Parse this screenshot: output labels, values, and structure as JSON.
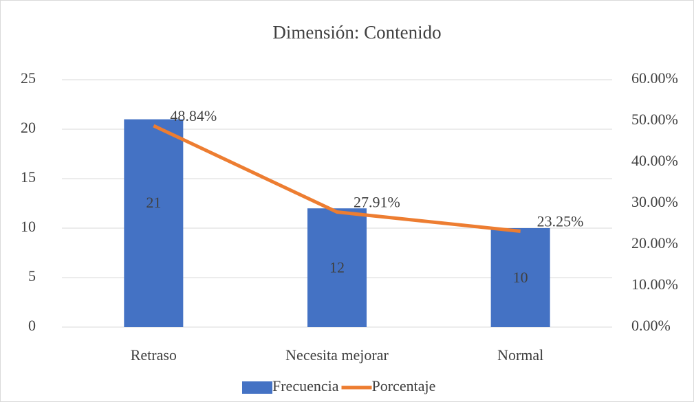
{
  "chart_data": {
    "type": "bar",
    "title": "Dimensión: Contenido",
    "categories": [
      "Retraso",
      "Necesita mejorar",
      "Normal"
    ],
    "series": [
      {
        "name": "Frecuencia",
        "type": "bar",
        "color": "#4472c4",
        "values": [
          21,
          12,
          10
        ]
      },
      {
        "name": "Porcentaje",
        "type": "line",
        "axis": "y2",
        "color": "#ed7d31",
        "values": [
          48.84,
          27.91,
          23.25
        ],
        "value_labels": [
          "48.84%",
          "27.91%",
          "23.25%"
        ]
      }
    ],
    "ylim": [
      0,
      25
    ],
    "yticks": [
      0,
      5,
      10,
      15,
      20,
      25
    ],
    "y2lim": [
      0,
      60
    ],
    "y2ticks": [
      {
        "value": 0,
        "label": "0.00%"
      },
      {
        "value": 10,
        "label": "10.00%"
      },
      {
        "value": 20,
        "label": "20.00%"
      },
      {
        "value": 30,
        "label": "30.00%"
      },
      {
        "value": 40,
        "label": "40.00%"
      },
      {
        "value": 50,
        "label": "50.00%"
      },
      {
        "value": 60,
        "label": "60.00%"
      }
    ],
    "grid": true,
    "legend": "bottom"
  }
}
